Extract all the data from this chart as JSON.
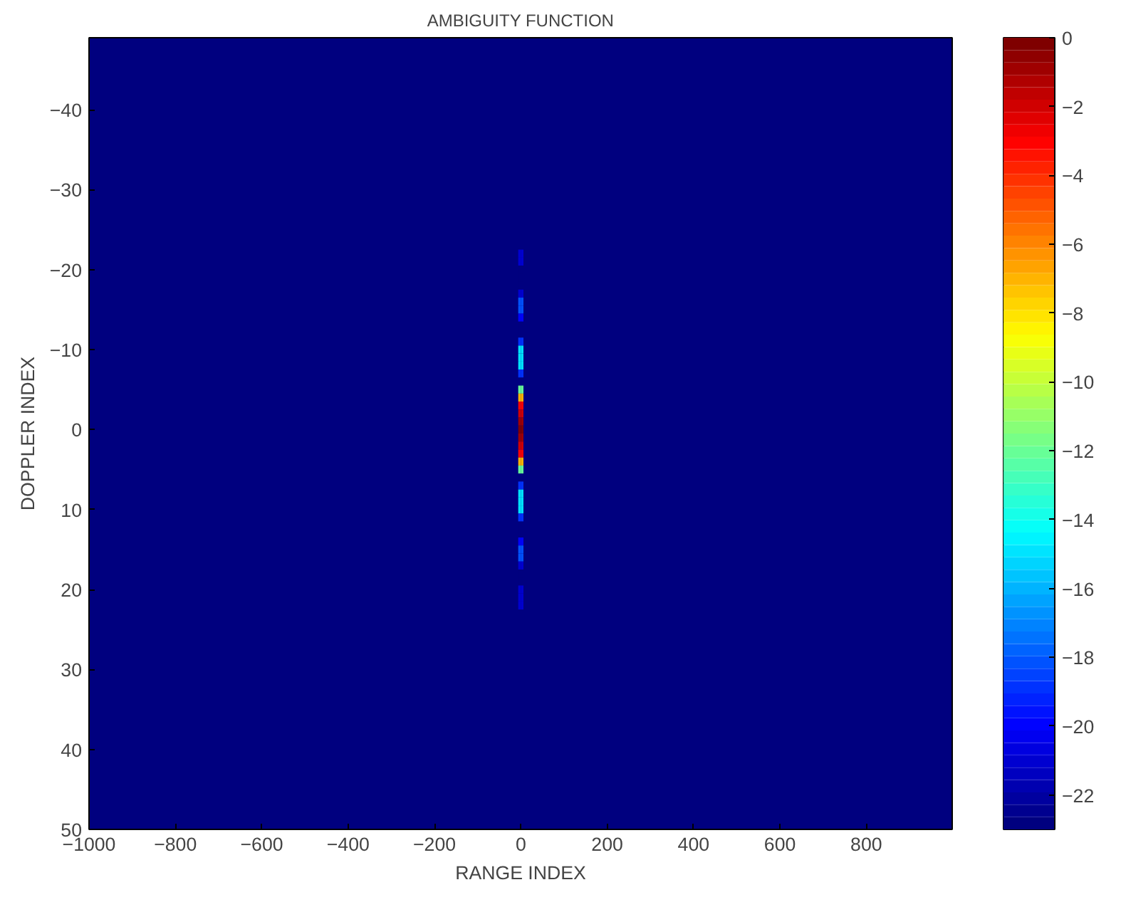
{
  "chart_data": {
    "type": "heatmap",
    "title": "AMBIGUITY FUNCTION",
    "xlabel": "RANGE INDEX",
    "ylabel": "DOPPLER INDEX",
    "x": [
      -3,
      3
    ],
    "y": [
      -22,
      -21,
      -20,
      -19,
      -18,
      -17,
      -16,
      -15,
      -14,
      -13,
      -12,
      -11,
      -10,
      -9,
      -8,
      -7,
      -6,
      -5,
      -4,
      -3,
      -2,
      -1,
      0,
      1,
      2,
      3,
      4,
      5,
      6,
      7,
      8,
      9,
      10,
      11,
      12,
      13,
      14,
      15,
      16,
      17,
      18,
      19,
      20,
      21,
      22
    ],
    "cells": [
      [
        -21,
        -21
      ],
      [
        -21,
        -21
      ],
      [
        -23,
        -23
      ],
      [
        -23,
        -23
      ],
      [
        -23,
        -23
      ],
      [
        -21,
        -21
      ],
      [
        -18,
        -18
      ],
      [
        -18,
        -18
      ],
      [
        -20,
        -20
      ],
      [
        -23,
        -23
      ],
      [
        -23,
        -23
      ],
      [
        -19,
        -19
      ],
      [
        -15,
        -15
      ],
      [
        -15,
        -15
      ],
      [
        -15,
        -15
      ],
      [
        -19,
        -19
      ],
      [
        -23,
        -23
      ],
      [
        -12,
        -12
      ],
      [
        -7,
        -7
      ],
      [
        -3,
        -3
      ],
      [
        -2,
        -2
      ],
      [
        -1,
        -1
      ],
      [
        0,
        0
      ],
      [
        -1,
        -1
      ],
      [
        -2,
        -2
      ],
      [
        -3,
        -3
      ],
      [
        -7,
        -7
      ],
      [
        -12,
        -12
      ],
      [
        -23,
        -23
      ],
      [
        -19,
        -19
      ],
      [
        -15,
        -15
      ],
      [
        -15,
        -15
      ],
      [
        -15,
        -15
      ],
      [
        -19,
        -19
      ],
      [
        -23,
        -23
      ],
      [
        -23,
        -23
      ],
      [
        -20,
        -20
      ],
      [
        -18,
        -18
      ],
      [
        -18,
        -18
      ],
      [
        -21,
        -21
      ],
      [
        -23,
        -23
      ],
      [
        -23,
        -23
      ],
      [
        -21,
        -21
      ],
      [
        -21,
        -21
      ],
      [
        -21,
        -21
      ]
    ],
    "clim": [
      -23,
      0
    ],
    "cticks": [
      0,
      -2,
      -4,
      -6,
      -8,
      -10,
      -12,
      -14,
      -16,
      -18,
      -20,
      -22
    ],
    "xlim": [
      -1000,
      999
    ],
    "xticks": [
      -1000,
      -800,
      -600,
      -400,
      -200,
      0,
      200,
      400,
      600,
      800
    ],
    "ylim": [
      50,
      -49
    ],
    "yticks": [
      -40,
      -30,
      -20,
      -10,
      0,
      10,
      20,
      30,
      40,
      50
    ]
  }
}
